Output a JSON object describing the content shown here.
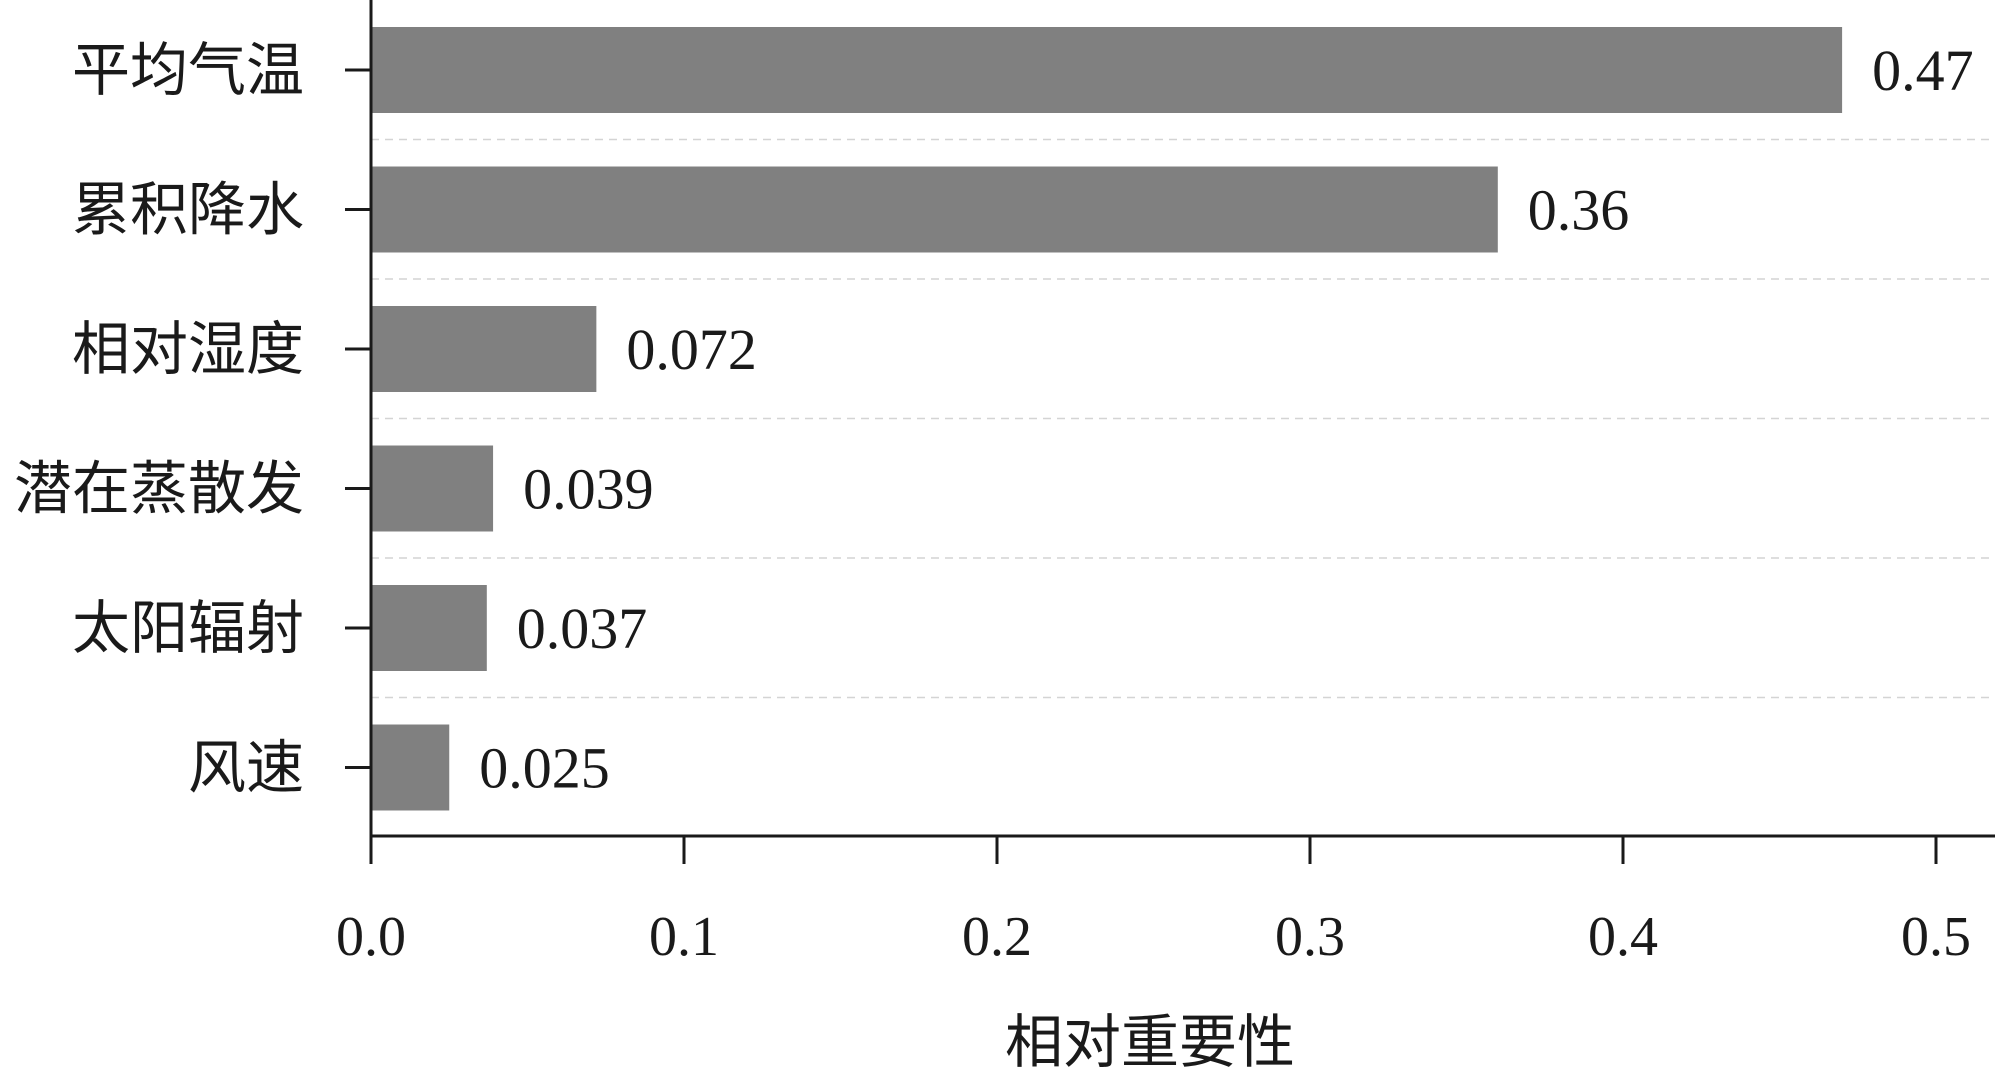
{
  "chart_data": {
    "type": "bar",
    "orientation": "horizontal",
    "categories": [
      "平均气温",
      "累积降水",
      "相对湿度",
      "潜在蒸散发",
      "太阳辐射",
      "风速"
    ],
    "values": [
      0.47,
      0.36,
      0.072,
      0.039,
      0.037,
      0.025
    ],
    "value_labels": [
      "0.47",
      "0.36",
      "0.072",
      "0.039",
      "0.037",
      "0.025"
    ],
    "xlabel": "相对重要性",
    "ylabel": "",
    "title": "",
    "xlim": [
      0,
      0.52
    ],
    "xticks": [
      0,
      0.1,
      0.2,
      0.3,
      0.4,
      0.5
    ],
    "xtick_labels": [
      "0.0",
      "0.1",
      "0.2",
      "0.3",
      "0.4",
      "0.5"
    ],
    "grid": "horizontal dashed separators",
    "legend": "none",
    "bar_color": "#808080"
  }
}
